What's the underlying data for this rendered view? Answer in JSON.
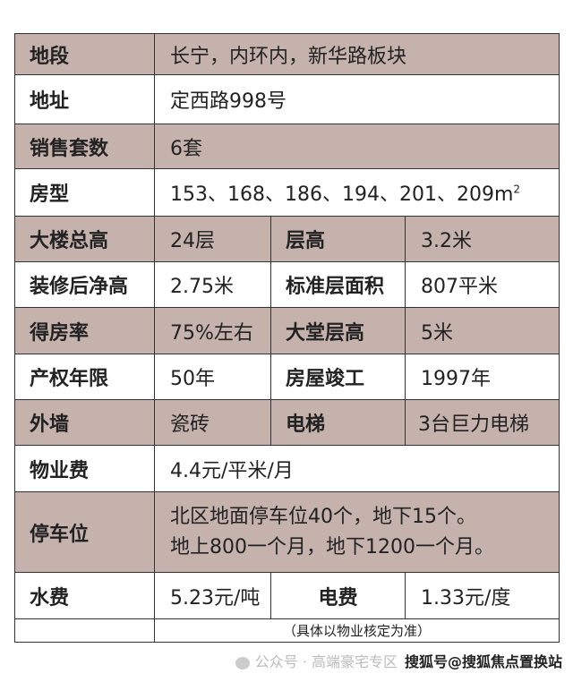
{
  "rows": [
    {
      "k": "地段",
      "v": "长宁，内环内，新华路板块"
    },
    {
      "k": "地址",
      "v": "定西路998号"
    },
    {
      "k": "销售套数",
      "v": "6套"
    },
    {
      "k": "房型",
      "v": "153、168、186、194、201、209m",
      "sup": "2"
    },
    {
      "k": "大楼总高",
      "v": "24层",
      "k2": "层高",
      "v2": "3.2米"
    },
    {
      "k": "装修后净高",
      "v": "2.75米",
      "k2": "标准层面积",
      "v2": "807平米"
    },
    {
      "k": "得房率",
      "v": "75%左右",
      "k2": "大堂层高",
      "v2": "5米"
    },
    {
      "k": "产权年限",
      "v": "50年",
      "k2": "房屋竣工",
      "v2": "1997年"
    },
    {
      "k": "外墙",
      "v": "瓷砖",
      "k2": "电梯",
      "v2": "3台巨力电梯"
    },
    {
      "k": "物业费",
      "v": "4.4元/平米/月"
    },
    {
      "k": "停车位",
      "v": "北区地面停车位40个，地下15个。",
      "v_line2": "地上800一个月，地下1200一个月。"
    },
    {
      "k": "水费",
      "v": "5.23元/吨",
      "k2": "电费",
      "v2": "1.33元/度"
    }
  ],
  "note": "（具体以物业核定为准）",
  "watermark": {
    "text": "公众号 · 高端豪宅专区",
    "overlay": "搜狐号@搜狐焦点置换站",
    "icon": "wechat-icon"
  },
  "colors": {
    "shade": "#c5b2ac",
    "border": "#333333"
  }
}
